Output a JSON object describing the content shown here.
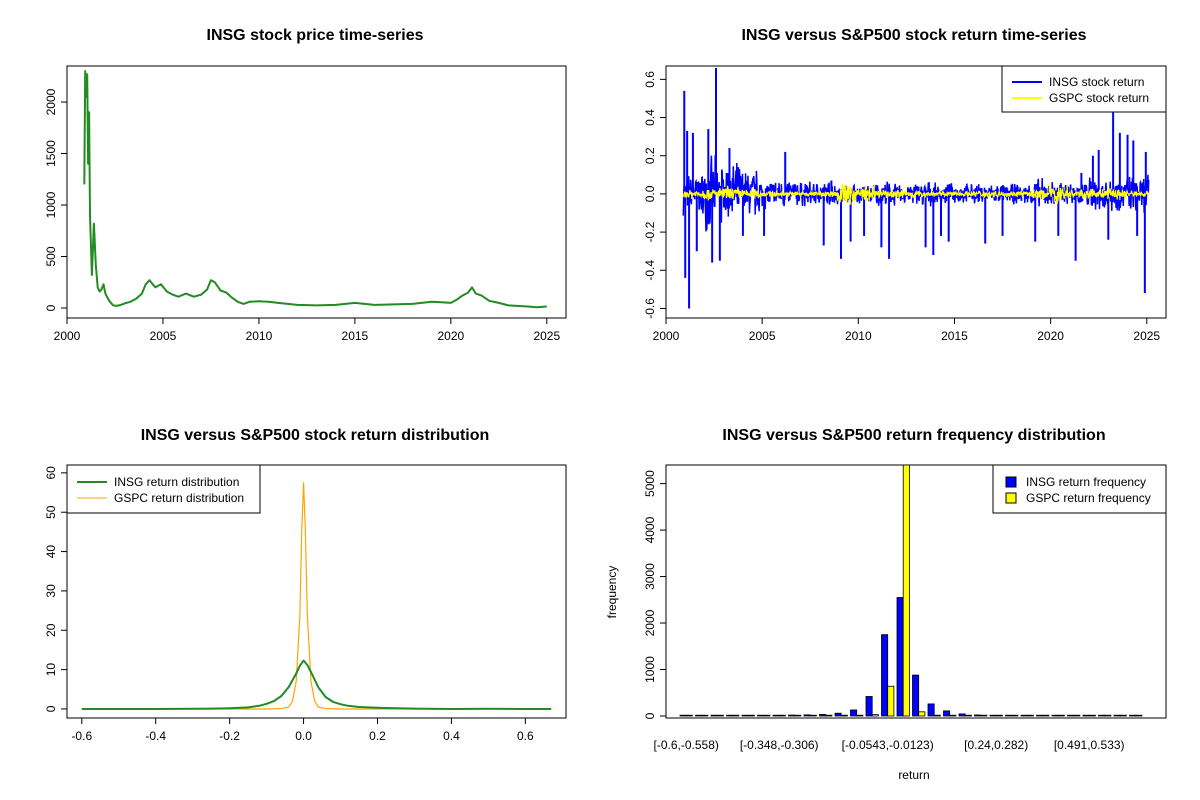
{
  "chart_data": [
    {
      "type": "line",
      "title": "INSG stock price time-series",
      "xlabel": "",
      "ylabel": "",
      "xlim": [
        2000,
        2026
      ],
      "ylim": [
        0,
        2350
      ],
      "xticks": [
        2000,
        2005,
        2010,
        2015,
        2020,
        2025
      ],
      "yticks": [
        0,
        500,
        1000,
        1500,
        2000
      ],
      "series": [
        {
          "name": "INSG stock price",
          "color": "#228B22",
          "x": [
            2000.9,
            2000.95,
            2001.0,
            2001.05,
            2001.1,
            2001.15,
            2001.2,
            2001.3,
            2001.4,
            2001.5,
            2001.6,
            2001.7,
            2001.8,
            2001.9,
            2002.0,
            2002.2,
            2002.4,
            2002.6,
            2002.8,
            2003.0,
            2003.3,
            2003.6,
            2003.9,
            2004.1,
            2004.3,
            2004.6,
            2004.9,
            2005.2,
            2005.5,
            2005.8,
            2006.2,
            2006.6,
            2007.0,
            2007.3,
            2007.5,
            2007.7,
            2008.0,
            2008.3,
            2008.6,
            2008.9,
            2009.2,
            2009.5,
            2010.0,
            2010.5,
            2011.0,
            2011.5,
            2012.0,
            2013.0,
            2014.0,
            2015.0,
            2015.5,
            2016.0,
            2017.0,
            2018.0,
            2019.0,
            2019.5,
            2020.0,
            2020.3,
            2020.6,
            2020.9,
            2021.1,
            2021.3,
            2021.6,
            2022.0,
            2022.5,
            2023.0,
            2024.0,
            2024.5,
            2025.0
          ],
          "y": [
            1200,
            2300,
            2050,
            2270,
            1400,
            1900,
            900,
            320,
            820,
            420,
            200,
            160,
            180,
            230,
            140,
            70,
            25,
            20,
            30,
            45,
            60,
            90,
            140,
            230,
            270,
            200,
            230,
            160,
            130,
            110,
            140,
            110,
            130,
            180,
            270,
            250,
            170,
            150,
            100,
            60,
            40,
            60,
            65,
            60,
            50,
            40,
            30,
            25,
            30,
            50,
            40,
            30,
            35,
            40,
            60,
            55,
            50,
            80,
            120,
            150,
            200,
            140,
            120,
            70,
            50,
            25,
            15,
            8,
            15
          ]
        }
      ]
    },
    {
      "type": "line",
      "title": "INSG versus S&P500 stock return time-series",
      "xlabel": "",
      "ylabel": "",
      "xlim": [
        2000,
        2026
      ],
      "ylim": [
        -0.6,
        0.6
      ],
      "xticks": [
        2000,
        2005,
        2010,
        2015,
        2020,
        2025
      ],
      "yticks": [
        -0.6,
        -0.4,
        -0.2,
        0.0,
        0.2,
        0.4,
        0.6
      ],
      "legend": "top-right",
      "series": [
        {
          "name": "INSG stock return",
          "color": "#0000FF",
          "spikes": [
            [
              2000.95,
              0.54
            ],
            [
              2001.0,
              -0.44
            ],
            [
              2001.1,
              0.33
            ],
            [
              2001.2,
              -0.6
            ],
            [
              2001.4,
              0.32
            ],
            [
              2001.6,
              -0.3
            ],
            [
              2002.2,
              0.34
            ],
            [
              2002.4,
              -0.36
            ],
            [
              2002.6,
              0.66
            ],
            [
              2002.8,
              -0.35
            ],
            [
              2003.3,
              0.24
            ],
            [
              2004.0,
              -0.22
            ],
            [
              2005.1,
              -0.22
            ],
            [
              2006.2,
              0.22
            ],
            [
              2008.2,
              -0.27
            ],
            [
              2008.6,
              0.07
            ],
            [
              2009.1,
              -0.34
            ],
            [
              2009.6,
              -0.25
            ],
            [
              2010.3,
              -0.22
            ],
            [
              2011.2,
              -0.28
            ],
            [
              2011.6,
              -0.34
            ],
            [
              2013.5,
              -0.28
            ],
            [
              2013.9,
              -0.32
            ],
            [
              2014.3,
              -0.22
            ],
            [
              2014.7,
              -0.25
            ],
            [
              2016.6,
              -0.26
            ],
            [
              2017.5,
              -0.22
            ],
            [
              2019.2,
              -0.25
            ],
            [
              2020.4,
              -0.22
            ],
            [
              2021.3,
              -0.35
            ],
            [
              2021.6,
              0.11
            ],
            [
              2022.2,
              0.2
            ],
            [
              2022.5,
              0.23
            ],
            [
              2023.0,
              -0.24
            ],
            [
              2023.25,
              0.43
            ],
            [
              2023.6,
              0.32
            ],
            [
              2024.0,
              0.31
            ],
            [
              2024.3,
              0.28
            ],
            [
              2024.5,
              -0.22
            ],
            [
              2024.9,
              -0.52
            ],
            [
              2024.95,
              0.22
            ]
          ],
          "band": [
            0.08,
            0.14,
            0.12,
            0.1,
            0.06,
            0.06,
            0.05,
            0.05,
            0.04,
            0.04,
            0.05,
            0.04,
            0.05,
            0.04,
            0.04,
            0.04,
            0.04,
            0.04,
            0.06,
            0.05,
            0.05,
            0.07,
            0.07,
            0.07,
            0.08
          ]
        },
        {
          "name": "GSPC stock return",
          "color": "#FFFF00",
          "band": [
            0.02,
            0.025,
            0.03,
            0.02,
            0.012,
            0.01,
            0.01,
            0.012,
            0.045,
            0.03,
            0.015,
            0.02,
            0.012,
            0.01,
            0.01,
            0.015,
            0.012,
            0.01,
            0.02,
            0.04,
            0.018,
            0.02,
            0.025,
            0.015,
            0.012
          ]
        }
      ]
    },
    {
      "type": "line",
      "title": "INSG versus S&P500 stock return distribution",
      "xlabel": "",
      "ylabel": "",
      "xlim": [
        -0.64,
        0.71
      ],
      "ylim": [
        0,
        60
      ],
      "xticks": [
        -0.6,
        -0.4,
        -0.2,
        0.0,
        0.2,
        0.4,
        0.6
      ],
      "yticks": [
        0,
        10,
        20,
        30,
        40,
        50,
        60
      ],
      "legend": "top-left",
      "series": [
        {
          "name": "INSG return distribution",
          "color": "#228B22",
          "x": [
            -0.6,
            -0.4,
            -0.25,
            -0.2,
            -0.15,
            -0.12,
            -0.1,
            -0.08,
            -0.06,
            -0.04,
            -0.02,
            -0.01,
            0.0,
            0.01,
            0.02,
            0.04,
            0.06,
            0.08,
            0.1,
            0.12,
            0.15,
            0.2,
            0.3,
            0.4,
            0.5,
            0.6,
            0.67
          ],
          "y": [
            0,
            0,
            0.1,
            0.2,
            0.4,
            0.8,
            1.3,
            2.0,
            3.3,
            5.6,
            9.0,
            11.0,
            12.3,
            11.2,
            9.4,
            5.5,
            3.0,
            1.8,
            1.2,
            0.8,
            0.5,
            0.3,
            0.1,
            0,
            0.05,
            0,
            0
          ]
        },
        {
          "name": "GSPC return distribution",
          "color": "#FFA500",
          "x": [
            -0.6,
            -0.1,
            -0.06,
            -0.04,
            -0.03,
            -0.02,
            -0.01,
            -0.005,
            0.0,
            0.005,
            0.01,
            0.02,
            0.03,
            0.04,
            0.06,
            0.1,
            0.67
          ],
          "y": [
            0,
            0,
            0.1,
            0.5,
            2.0,
            7.0,
            24.0,
            45.0,
            57.5,
            45.0,
            24.0,
            7.0,
            2.0,
            0.5,
            0.1,
            0,
            0
          ]
        }
      ]
    },
    {
      "type": "bar",
      "title": "INSG versus S&P500 return frequency distribution",
      "xlabel": "return",
      "ylabel": "frequency",
      "ylim": [
        0,
        5400
      ],
      "yticks": [
        0,
        1000,
        2000,
        3000,
        4000,
        5000
      ],
      "legend": "top-right",
      "categories": [
        "[-0.6,-0.558)",
        "[-0.558,-0.516)",
        "[-0.516,-0.474)",
        "[-0.474,-0.432)",
        "[-0.432,-0.39)",
        "[-0.39,-0.348)",
        "[-0.348,-0.306)",
        "[-0.306,-0.264)",
        "[-0.264,-0.222)",
        "[-0.222,-0.18)",
        "[-0.18,-0.138)",
        "[-0.138,-0.0963)",
        "[-0.0963,-0.0543)",
        "[-0.0543,-0.0123)",
        "[-0.0123,0.0297)",
        "[0.0297,0.0717)",
        "[0.0717,0.114)",
        "[0.114,0.156)",
        "[0.156,0.198)",
        "[0.198,0.24)",
        "[0.24,0.282)",
        "[0.282,0.324)",
        "[0.324,0.366)",
        "[0.366,0.408)",
        "[0.408,0.45)",
        "[0.45,0.491)",
        "[0.491,0.533)",
        "[0.533,0.575)",
        "[0.575,0.617)",
        "[0.617,0.659)"
      ],
      "xtick_labels": [
        "[-0.6,-0.558)",
        "[-0.348,-0.306)",
        "[-0.0543,-0.0123)",
        "[0.24,0.282)",
        "[0.491,0.533)"
      ],
      "series": [
        {
          "name": "INSG return frequency",
          "color": "#0000FF",
          "values": [
            2,
            1,
            1,
            2,
            3,
            8,
            14,
            20,
            25,
            35,
            60,
            130,
            420,
            1750,
            2550,
            880,
            260,
            110,
            45,
            22,
            15,
            8,
            5,
            4,
            3,
            3,
            2,
            2,
            1,
            1
          ]
        },
        {
          "name": "GSPC return frequency",
          "color": "#FFFF00",
          "values": [
            0,
            0,
            0,
            0,
            0,
            0,
            0,
            0,
            0,
            0,
            0,
            2,
            30,
            640,
            5400,
            90,
            2,
            0,
            0,
            0,
            0,
            0,
            0,
            0,
            0,
            0,
            0,
            0,
            0,
            0
          ]
        }
      ]
    }
  ]
}
